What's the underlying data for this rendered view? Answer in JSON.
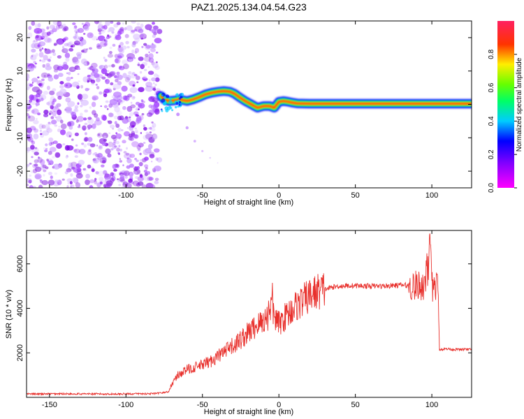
{
  "figure": {
    "title": "PAZ1.2025.134.04.54.G23"
  },
  "colors": {
    "snr_line": "#e8302c",
    "ridge_core": "#e8302c",
    "noise": "#8a2be2",
    "axis": "#000000"
  },
  "chart_data": [
    {
      "type": "heatmap",
      "title": "PAZ1.2025.134.04.54.G23",
      "xlabel": "Height of straight line (km)",
      "ylabel": "Frequency (Hz)",
      "xlim": [
        -165,
        126
      ],
      "ylim": [
        -25,
        25
      ],
      "xticks": [
        -150,
        -100,
        -50,
        0,
        50,
        100
      ],
      "yticks": [
        -20,
        -10,
        0,
        10,
        20
      ],
      "noise_region_x": [
        -165,
        -78
      ],
      "colorbar": {
        "label": "Normalized spectral amplitude",
        "range": [
          0,
          1
        ],
        "ticks": [
          "0.0",
          "0.2",
          "0.4",
          "0.6",
          "0.8"
        ],
        "colormap": "rainbow (magenta-blue-cyan-green-yellow-red-pink)"
      },
      "ridge": {
        "x": [
          -77,
          -75,
          -72,
          -68,
          -65,
          -60,
          -56,
          -52,
          -48,
          -44,
          -40,
          -36,
          -32,
          -29,
          -26,
          -22,
          -18,
          -14,
          -10,
          -6,
          -3,
          0,
          3,
          6,
          9,
          12,
          20,
          40,
          60,
          80,
          95,
          100,
          110,
          126
        ],
        "y": [
          2.5,
          1.5,
          1.0,
          1.2,
          1.5,
          1.0,
          1.5,
          2.2,
          3.0,
          3.5,
          3.8,
          4.0,
          3.8,
          3.2,
          2.2,
          1.0,
          0.0,
          -1.0,
          -0.5,
          -0.5,
          -1.0,
          0.8,
          1.0,
          0.8,
          0.5,
          0.3,
          0.2,
          0.2,
          0.2,
          0.2,
          0.2,
          0.2,
          0.2,
          0.2
        ]
      },
      "faint_branch": {
        "x": [
          -66,
          -60,
          -55,
          -50,
          -45,
          -40
        ],
        "y": [
          -3,
          -7,
          -11,
          -14,
          -16,
          -17.5
        ]
      }
    },
    {
      "type": "line",
      "xlabel": "Height of straight line (km)",
      "ylabel": "SNR (10 * v/v)",
      "xlim": [
        -165,
        126
      ],
      "ylim": [
        0,
        7500
      ],
      "xticks": [
        -150,
        -100,
        -50,
        0,
        50,
        100
      ],
      "yticks": [
        2000,
        4000,
        6000
      ],
      "series": [
        {
          "x": [
            -165,
            -140,
            -110,
            -80,
            -72,
            -70,
            -66,
            -60,
            -55,
            -50,
            -45,
            -40,
            -35,
            -30,
            -25,
            -20,
            -15,
            -10,
            -6,
            -4,
            -2,
            0,
            5,
            10,
            15,
            20,
            25,
            30,
            35,
            40,
            50,
            60,
            70,
            80,
            90,
            95,
            98,
            100,
            103,
            104,
            105,
            110,
            115,
            120,
            126
          ],
          "y": [
            150,
            160,
            150,
            170,
            250,
            600,
            1000,
            1250,
            1350,
            1450,
            1600,
            1850,
            2050,
            2300,
            2600,
            2900,
            3200,
            3450,
            3700,
            3900,
            3500,
            3300,
            3700,
            4050,
            4300,
            4550,
            4750,
            4850,
            4950,
            5000,
            5020,
            5000,
            5000,
            5050,
            5000,
            5050,
            5100,
            4950,
            5000,
            5000,
            2150,
            2180,
            2150,
            2150,
            2150
          ]
        }
      ]
    }
  ]
}
